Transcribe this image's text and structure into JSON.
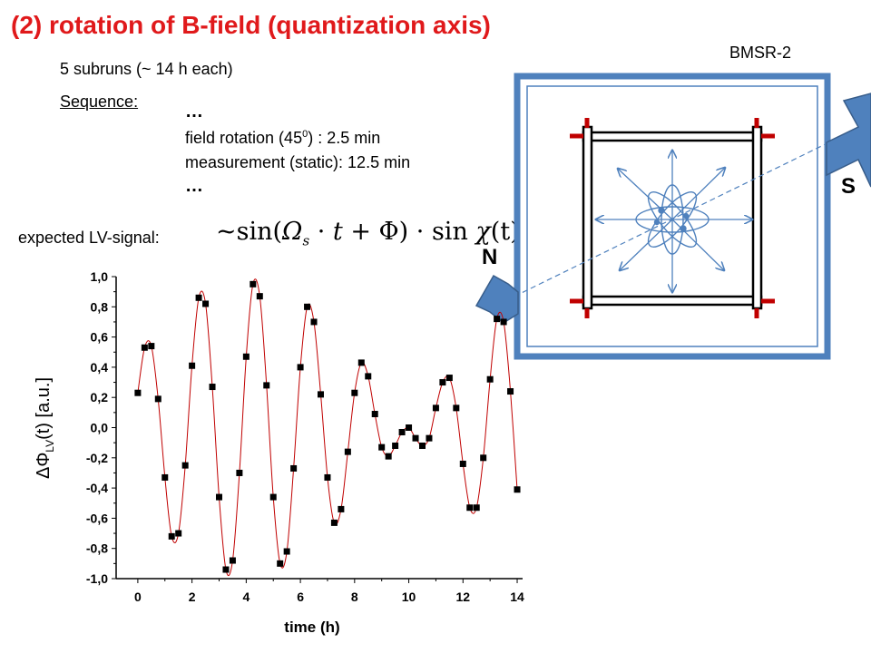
{
  "title": "(2) rotation of B-field (quantization axis)",
  "subruns": "5 subruns (~ 14 h each)",
  "sequence": {
    "label": "Sequence:",
    "dots_top": "…",
    "rotation": "field rotation (45",
    "rotation_sup": "0",
    "rotation_rest": ") : 2.5 min",
    "measurement": "measurement (static): 12.5 min",
    "dots_bottom": "…"
  },
  "expected_label": "expected LV-signal:",
  "formula": {
    "prefix": "~sin(",
    "omega": "Ω",
    "omega_sub": "s",
    "mid1": " · ",
    "t": "t",
    "mid2": " + Φ) · sin ",
    "chi": "χ",
    "end": "(t)"
  },
  "diagram": {
    "shield_label": "BMSR-2",
    "north_label": "N",
    "south_label": "S",
    "colors": {
      "shield": "#4f81bd",
      "coil": "#000000",
      "coil_end": "#c00000",
      "arrows": "#4f81bd"
    }
  },
  "chart_data": {
    "type": "scatter",
    "xlabel": "time (h)",
    "ylabel": "ΔΦLV(t) [a.u.]",
    "ylabel_parts": {
      "delta_phi": "ΔΦ",
      "sub": "LV",
      "rest": "(t) [a.u.]"
    },
    "xlim": [
      -0.8,
      14.2
    ],
    "ylim": [
      -1.0,
      1.0
    ],
    "xticks": [
      0,
      2,
      4,
      6,
      8,
      10,
      12,
      14
    ],
    "xtick_labels": [
      "0",
      "2",
      "4",
      "6",
      "8",
      "10",
      "12",
      "14"
    ],
    "yticks": [
      1.0,
      0.8,
      0.6,
      0.4,
      0.2,
      0.0,
      -0.2,
      -0.4,
      -0.6,
      -0.8,
      -1.0
    ],
    "ytick_labels": [
      "1,0",
      "0,8",
      "0,6",
      "0,4",
      "0,2",
      "0,0",
      "-0,2",
      "-0,4",
      "-0,6",
      "-0,8",
      "-1,0"
    ],
    "grid": false,
    "colors": {
      "points": "#000000",
      "fit": "#c00000"
    },
    "points": [
      [
        0.0,
        0.23
      ],
      [
        0.25,
        0.53
      ],
      [
        0.5,
        0.54
      ],
      [
        0.75,
        0.19
      ],
      [
        1.0,
        -0.33
      ],
      [
        1.25,
        -0.72
      ],
      [
        1.5,
        -0.7
      ],
      [
        1.75,
        -0.25
      ],
      [
        2.0,
        0.41
      ],
      [
        2.25,
        0.86
      ],
      [
        2.5,
        0.82
      ],
      [
        2.75,
        0.27
      ],
      [
        3.0,
        -0.46
      ],
      [
        3.25,
        -0.94
      ],
      [
        3.5,
        -0.88
      ],
      [
        3.75,
        -0.3
      ],
      [
        4.0,
        0.47
      ],
      [
        4.25,
        0.95
      ],
      [
        4.5,
        0.87
      ],
      [
        4.75,
        0.28
      ],
      [
        5.0,
        -0.46
      ],
      [
        5.25,
        -0.9
      ],
      [
        5.5,
        -0.82
      ],
      [
        5.75,
        -0.27
      ],
      [
        6.0,
        0.4
      ],
      [
        6.25,
        0.8
      ],
      [
        6.5,
        0.7
      ],
      [
        6.75,
        0.22
      ],
      [
        7.0,
        -0.33
      ],
      [
        7.25,
        -0.63
      ],
      [
        7.5,
        -0.54
      ],
      [
        7.75,
        -0.16
      ],
      [
        8.0,
        0.23
      ],
      [
        8.25,
        0.43
      ],
      [
        8.5,
        0.34
      ],
      [
        8.75,
        0.09
      ],
      [
        9.0,
        -0.13
      ],
      [
        9.25,
        -0.19
      ],
      [
        9.5,
        -0.12
      ],
      [
        9.75,
        -0.03
      ],
      [
        10.0,
        0.0
      ],
      [
        10.25,
        -0.07
      ],
      [
        10.5,
        -0.12
      ],
      [
        10.75,
        -0.07
      ],
      [
        11.0,
        0.13
      ],
      [
        11.25,
        0.3
      ],
      [
        11.5,
        0.33
      ],
      [
        11.75,
        0.13
      ],
      [
        12.0,
        -0.24
      ],
      [
        12.25,
        -0.53
      ],
      [
        12.5,
        -0.53
      ],
      [
        12.75,
        -0.2
      ],
      [
        13.0,
        0.32
      ],
      [
        13.25,
        0.72
      ],
      [
        13.5,
        0.7
      ],
      [
        13.75,
        0.24
      ],
      [
        14.0,
        -0.41
      ]
    ]
  }
}
